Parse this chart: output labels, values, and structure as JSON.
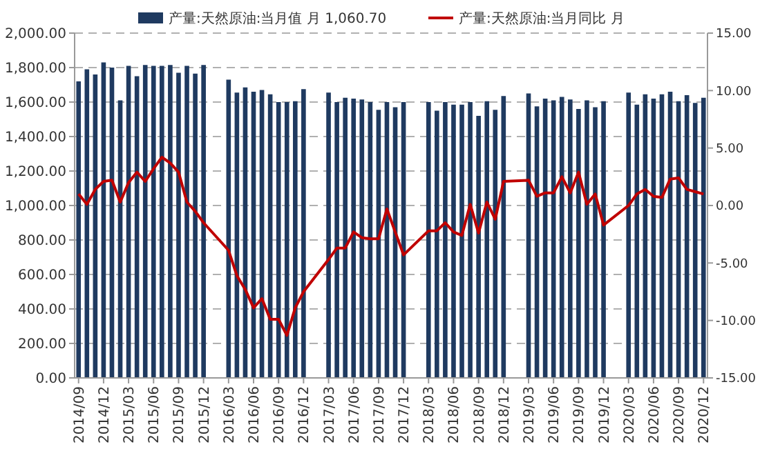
{
  "chart_data": {
    "type": "bar",
    "categories": [
      "2014/09",
      null,
      null,
      "2014/12",
      null,
      null,
      "2015/03",
      null,
      null,
      "2015/06",
      null,
      null,
      "2015/09",
      null,
      null,
      "2015/12",
      null,
      null,
      "2016/03",
      null,
      null,
      "2016/06",
      null,
      null,
      "2016/09",
      null,
      null,
      "2016/12",
      null,
      null,
      "2017/03",
      null,
      null,
      "2017/06",
      null,
      null,
      "2017/09",
      null,
      null,
      "2017/12",
      null,
      null,
      "2018/03",
      null,
      null,
      "2018/06",
      null,
      null,
      "2018/09",
      null,
      null,
      "2018/12",
      null,
      null,
      "2019/03",
      null,
      null,
      "2019/06",
      null,
      null,
      "2019/09",
      null,
      null,
      "2019/12",
      null,
      null,
      "2020/03",
      null,
      null,
      "2020/06",
      null,
      null,
      "2020/09",
      null,
      null,
      "2020/12"
    ],
    "series": [
      {
        "name": "产量:天然原油:当月值 月 1,060.70",
        "color": "#1f3a60",
        "values": [
          1720,
          1790,
          1760,
          1830,
          1800,
          1610,
          1810,
          1750,
          1815,
          1810,
          1810,
          1815,
          1770,
          1810,
          1765,
          1815,
          null,
          null,
          1730,
          1655,
          1685,
          1660,
          1670,
          1645,
          1600,
          1600,
          1605,
          1675,
          null,
          null,
          1655,
          1600,
          1625,
          1620,
          1615,
          1600,
          1555,
          1600,
          1570,
          1600,
          null,
          null,
          1600,
          1550,
          1600,
          1585,
          1585,
          1600,
          1520,
          1605,
          1555,
          1635,
          null,
          null,
          1650,
          1575,
          1620,
          1610,
          1630,
          1615,
          1560,
          1610,
          1570,
          1605,
          null,
          null,
          1655,
          1585,
          1645,
          1620,
          1645,
          1660,
          1605,
          1640,
          1595,
          1625
        ]
      },
      {
        "name": "产量:天然原油:当月同比 月",
        "type": "line",
        "axis": "y2",
        "color": "#c00000",
        "values": [
          1.0,
          0.1,
          1.4,
          2.1,
          2.2,
          0.3,
          2.0,
          2.9,
          2.1,
          3.2,
          4.2,
          3.7,
          2.9,
          0.3,
          -0.5,
          -1.5,
          null,
          null,
          -3.9,
          -6.1,
          -7.3,
          -8.9,
          -8.1,
          -9.9,
          -9.9,
          -11.3,
          -8.9,
          -7.5,
          null,
          null,
          -4.7,
          -3.7,
          -3.7,
          -2.3,
          -2.8,
          -2.9,
          -2.9,
          -0.3,
          -2.3,
          -4.3,
          null,
          null,
          -2.2,
          -2.2,
          -1.5,
          -2.3,
          -2.6,
          0.1,
          -2.4,
          0.3,
          -1.2,
          2.1,
          null,
          null,
          2.2,
          0.8,
          1.1,
          1.1,
          2.5,
          1.1,
          2.9,
          0.1,
          1.0,
          -1.7,
          null,
          null,
          0.0,
          1.0,
          1.4,
          0.8,
          0.7,
          2.3,
          2.4,
          1.4,
          1.2,
          1.0
        ]
      }
    ],
    "ylim": [
      0,
      2000
    ],
    "yticks": [
      {
        "value": 0,
        "label": "0.00"
      },
      {
        "value": 200,
        "label": "200.00"
      },
      {
        "value": 400,
        "label": "400.00"
      },
      {
        "value": 600,
        "label": "600.00"
      },
      {
        "value": 800,
        "label": "800.00"
      },
      {
        "value": 1000,
        "label": "1,000.00"
      },
      {
        "value": 1200,
        "label": "1,200.00"
      },
      {
        "value": 1400,
        "label": "1,400.00"
      },
      {
        "value": 1600,
        "label": "1,600.00"
      },
      {
        "value": 1800,
        "label": "1,800.00"
      },
      {
        "value": 2000,
        "label": "2,000.00"
      }
    ],
    "y2lim": [
      -15,
      15
    ],
    "y2ticks": [
      {
        "value": -15,
        "label": "-15.00"
      },
      {
        "value": -10,
        "label": "-10.00"
      },
      {
        "value": -5,
        "label": "-5.00"
      },
      {
        "value": 0,
        "label": "0.00"
      },
      {
        "value": 5,
        "label": "5.00"
      },
      {
        "value": 10,
        "label": "10.00"
      },
      {
        "value": 15,
        "label": "15.00"
      }
    ],
    "grid": "y",
    "legend": "top",
    "line_style": "solid",
    "marker": "none"
  }
}
